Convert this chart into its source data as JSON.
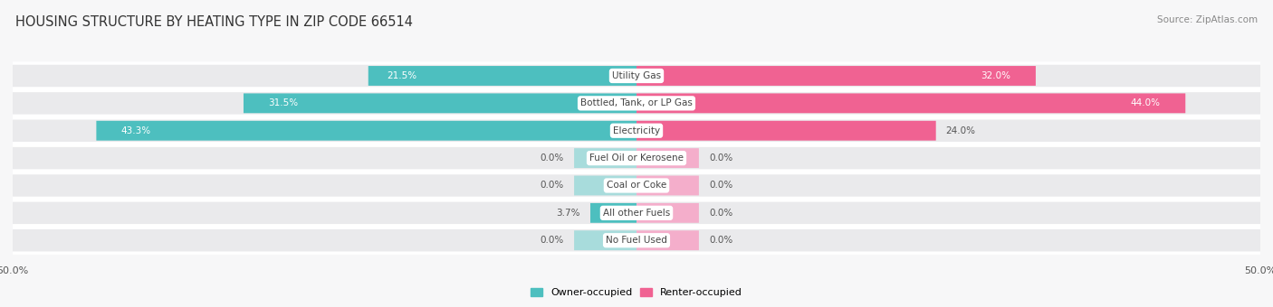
{
  "title": "HOUSING STRUCTURE BY HEATING TYPE IN ZIP CODE 66514",
  "source": "Source: ZipAtlas.com",
  "categories": [
    "Utility Gas",
    "Bottled, Tank, or LP Gas",
    "Electricity",
    "Fuel Oil or Kerosene",
    "Coal or Coke",
    "All other Fuels",
    "No Fuel Used"
  ],
  "owner_values": [
    21.5,
    31.5,
    43.3,
    0.0,
    0.0,
    3.7,
    0.0
  ],
  "renter_values": [
    32.0,
    44.0,
    24.0,
    0.0,
    0.0,
    0.0,
    0.0
  ],
  "owner_color": "#4DBFBF",
  "owner_color_light": "#A8DCDC",
  "renter_color": "#F06292",
  "renter_color_light": "#F4AECB",
  "background_color": "#F7F7F8",
  "row_bg_color": "#EAEAEC",
  "row_border_color": "#FFFFFF",
  "axis_limit": 50.0,
  "stub_size": 5.0,
  "title_fontsize": 10.5,
  "source_fontsize": 7.5,
  "bar_label_fontsize": 7.5,
  "category_fontsize": 7.5,
  "legend_fontsize": 8,
  "axis_label_fontsize": 8
}
